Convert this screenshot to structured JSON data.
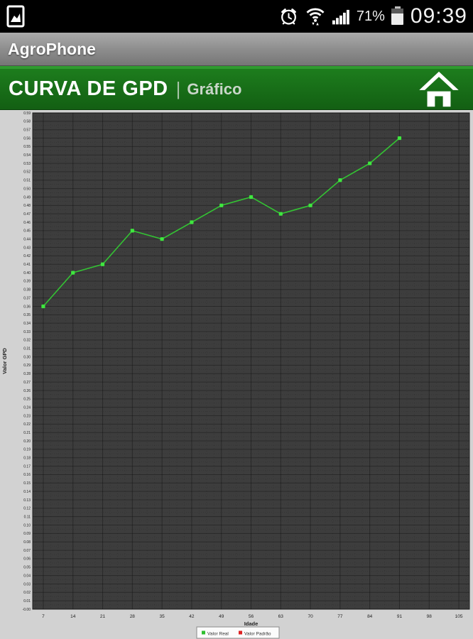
{
  "status_bar": {
    "time": "09:39",
    "battery_label": "71%",
    "icons": [
      "screenshot-notification-icon",
      "alarm-icon",
      "wifi-icon",
      "signal-strength-icon",
      "battery-icon"
    ]
  },
  "title_bar": {
    "app_name": "AgroPhone"
  },
  "header": {
    "title": "CURVA DE GPD",
    "separator": "|",
    "subtitle": "Gráfico"
  },
  "chart_data": {
    "type": "line",
    "title": "",
    "xlabel": "Idade",
    "ylabel": "Valor GPD",
    "x_ticks": [
      7,
      14,
      21,
      28,
      35,
      42,
      49,
      56,
      63,
      70,
      77,
      84,
      91,
      98,
      105
    ],
    "xlim": [
      4.5,
      107.5
    ],
    "ylim": [
      0.0,
      0.59
    ],
    "y_tick_step": 0.01,
    "y_tick_decimals": 2,
    "grid": true,
    "legend_position": "bottom-center",
    "plot_bg": "#3d3d3d",
    "margin_bg": "#d2d2d2",
    "series": [
      {
        "name": "Valor Real",
        "color": "#33c433",
        "marker_color": "#3fe63f",
        "marker": "square",
        "x": [
          7,
          14,
          21,
          28,
          35,
          42,
          49,
          56,
          63,
          70,
          77,
          84,
          91
        ],
        "values": [
          0.36,
          0.4,
          0.41,
          0.45,
          0.44,
          0.46,
          0.48,
          0.49,
          0.47,
          0.48,
          0.51,
          0.53,
          0.56
        ]
      },
      {
        "name": "Valor Padrão",
        "color": "#dd2222",
        "marker_color": "#dd2222",
        "marker": "square",
        "x": [],
        "values": []
      }
    ],
    "legend": [
      {
        "label": "Valor Real",
        "color": "#2fbf2f"
      },
      {
        "label": "Valor Padrão",
        "color": "#dd2222"
      }
    ]
  },
  "colors": {
    "header_green": "#1d7d1d",
    "header_green_strip": "#2f9b2f",
    "status_bar_bg": "#000000",
    "title_bar_gray": "#8b8b8b",
    "line_green": "#33c433",
    "legend_red": "#dd2222",
    "plot_background": "#3d3d3d"
  }
}
